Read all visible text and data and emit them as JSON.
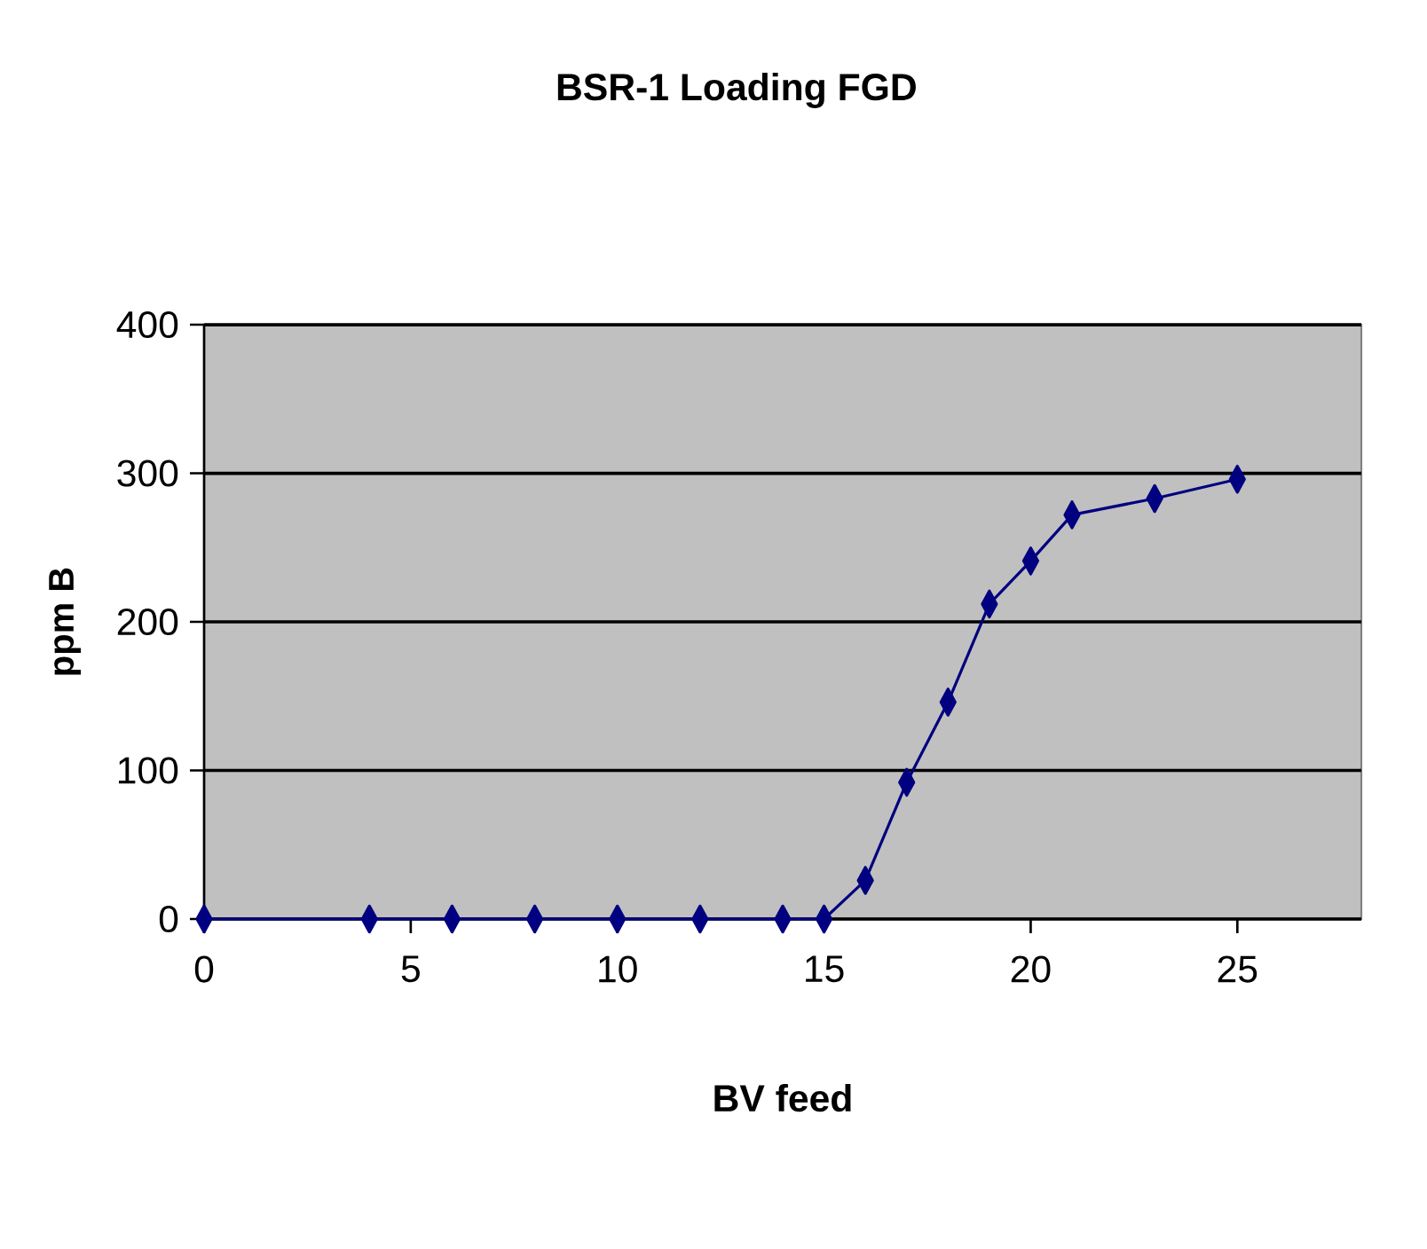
{
  "chart_data": {
    "type": "line",
    "title": "BSR-1 Loading FGD",
    "xlabel": "BV feed",
    "ylabel": "ppm B",
    "x": [
      0,
      4,
      6,
      8,
      10,
      12,
      14,
      15,
      16,
      17,
      18,
      19,
      20,
      21,
      23,
      25
    ],
    "series": [
      {
        "color": "#000080",
        "values": [
          0,
          0,
          0,
          0,
          0,
          0,
          0,
          0,
          26,
          92,
          146,
          212,
          241,
          272,
          283,
          296
        ]
      }
    ],
    "xlim": [
      0,
      28
    ],
    "xticks": [
      0,
      5,
      10,
      15,
      20,
      25
    ],
    "ylim": [
      0,
      400
    ],
    "yticks": [
      0,
      100,
      200,
      300,
      400
    ],
    "grid": "y",
    "marker": "diamond",
    "line_style": "solid"
  }
}
